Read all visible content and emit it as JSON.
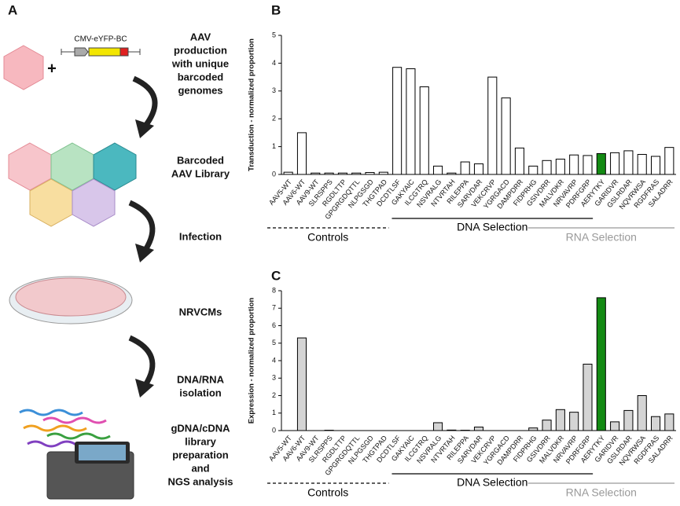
{
  "panel_a": {
    "panel": "A",
    "plus": "+",
    "construct": "CMV-eYFP-BC",
    "steps": [
      [
        "AAV",
        "production",
        "with unique",
        "barcoded",
        "genomes"
      ],
      [
        "Barcoded",
        "AAV Library"
      ],
      [
        "Infection"
      ],
      [
        "NRVCMs"
      ],
      [
        "DNA/RNA",
        "isolation"
      ],
      [
        "gDNA/cDNA",
        "library",
        "preparation",
        "and",
        "NGS analysis"
      ]
    ]
  },
  "chart_data": [
    {
      "type": "bar",
      "panel": "B",
      "ylabel": "Transduction - normalized proportion",
      "categories": [
        "AAV5-WT",
        "AAV6-WT",
        "AAV9-WT",
        "SLRSPPS",
        "RGDLTTP",
        "GPGRGDQTTL",
        "NLPGSGD",
        "THGTPAD",
        "DCDTLSF",
        "GAKYAIC",
        "ILCGTRQ",
        "NSVRALG",
        "NTVRTAH",
        "RILEPPA",
        "SARVDAR",
        "VEKCRVP",
        "YGRGACD",
        "DAMPDRR",
        "FIDPRHG",
        "GSIVDRR",
        "MALVDKR",
        "NRVAVRP",
        "PDRFGRP",
        "AERYTKY",
        "GARIDVR",
        "GSLRDAR",
        "NQVRWSA",
        "RGDFRAS",
        "SALADRR"
      ],
      "values": [
        0.08,
        1.5,
        0.05,
        0.05,
        0.05,
        0.05,
        0.07,
        0.08,
        3.85,
        3.8,
        3.15,
        0.3,
        0.05,
        0.45,
        0.38,
        3.5,
        2.75,
        0.95,
        0.3,
        0.5,
        0.55,
        0.7,
        0.68,
        0.75,
        0.78,
        0.85,
        0.72,
        0.65,
        0.97
      ],
      "colors": [
        "#fff",
        "#fff",
        "#fff",
        "#fff",
        "#fff",
        "#fff",
        "#fff",
        "#fff",
        "#fff",
        "#fff",
        "#fff",
        "#fff",
        "#fff",
        "#fff",
        "#fff",
        "#fff",
        "#fff",
        "#fff",
        "#fff",
        "#fff",
        "#fff",
        "#fff",
        "#fff",
        "#138a13",
        "#fff",
        "#fff",
        "#fff",
        "#fff",
        "#fff"
      ],
      "ylim": [
        0,
        5
      ],
      "yticks": [
        0,
        1,
        2,
        3,
        4,
        5
      ],
      "groups": [
        {
          "label": "Controls",
          "color": "#000",
          "dashed": true
        },
        {
          "label": "DNA Selection",
          "color": "#000",
          "dashed": false
        },
        {
          "label": "RNA Selection",
          "color": "#999",
          "dashed": false
        }
      ]
    },
    {
      "type": "bar",
      "panel": "C",
      "ylabel": "Expression - normalized proportion",
      "categories": [
        "AAV5-WT",
        "AAV6-WT",
        "AAV9-WT",
        "SLRSPPS",
        "RGDLTTP",
        "GPGRGDQTTL",
        "NLPGSGD",
        "THGTPAD",
        "DCDTLSF",
        "GAKYAIC",
        "ILCGTRQ",
        "NSVRALG",
        "NTVRTAH",
        "RILEPPA",
        "SARVDAR",
        "VEKCRVP",
        "YGRGACD",
        "DAMPDRR",
        "FIDPRHG",
        "GSIVDRR",
        "MALVDKR",
        "NRVAVRP",
        "PDRFGRP",
        "AERYTKY",
        "GARIDVR",
        "GSLRDAR",
        "NQVRWSA",
        "RGDFRAS",
        "SALADRR"
      ],
      "values": [
        0,
        5.3,
        0,
        0.02,
        0,
        0,
        0,
        0,
        0,
        0,
        0,
        0.45,
        0.03,
        0.02,
        0.2,
        0,
        0,
        0,
        0.15,
        0.6,
        1.2,
        1.05,
        3.8,
        7.6,
        0.5,
        1.15,
        2.0,
        0.8,
        0.95
      ],
      "colors": [
        "#d4d4d4",
        "#d4d4d4",
        "#d4d4d4",
        "#d4d4d4",
        "#d4d4d4",
        "#d4d4d4",
        "#d4d4d4",
        "#d4d4d4",
        "#d4d4d4",
        "#d4d4d4",
        "#d4d4d4",
        "#d4d4d4",
        "#d4d4d4",
        "#d4d4d4",
        "#d4d4d4",
        "#d4d4d4",
        "#d4d4d4",
        "#d4d4d4",
        "#d4d4d4",
        "#d4d4d4",
        "#d4d4d4",
        "#d4d4d4",
        "#d4d4d4",
        "#138a13",
        "#d4d4d4",
        "#d4d4d4",
        "#d4d4d4",
        "#d4d4d4",
        "#d4d4d4"
      ],
      "ylim": [
        0,
        8
      ],
      "yticks": [
        0,
        1,
        2,
        3,
        4,
        5,
        6,
        7,
        8
      ],
      "groups": [
        {
          "label": "Controls",
          "color": "#000",
          "dashed": true
        },
        {
          "label": "DNA Selection",
          "color": "#000",
          "dashed": false
        },
        {
          "label": "RNA Selection",
          "color": "#999",
          "dashed": false
        }
      ]
    }
  ]
}
